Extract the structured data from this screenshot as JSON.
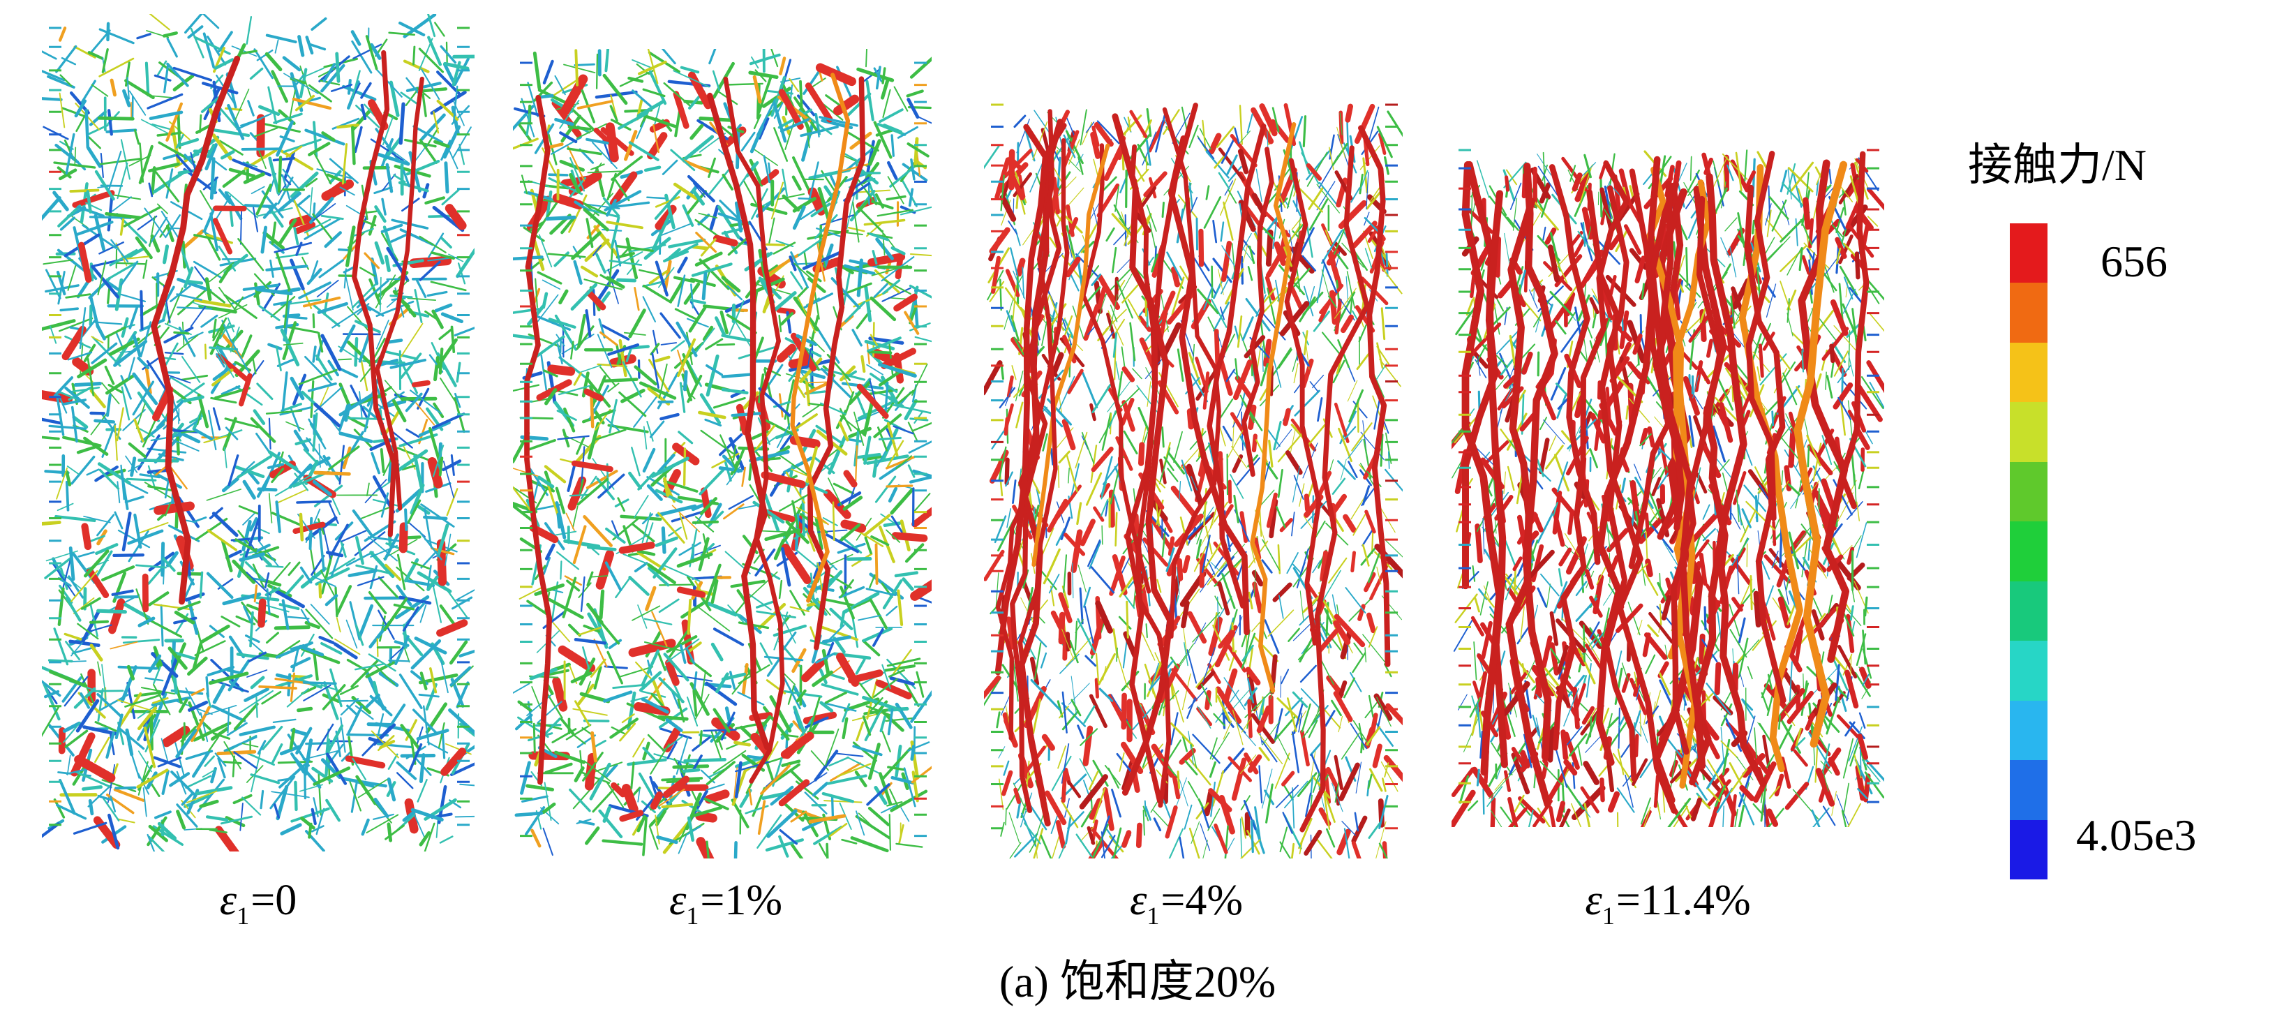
{
  "panels": [
    {
      "id": "p0",
      "label_sym": "ε",
      "label_sub": "1",
      "label_val": "=0",
      "style": "dense-green"
    },
    {
      "id": "p1",
      "label_sym": "ε",
      "label_sub": "1",
      "label_val": "=1%",
      "style": "green"
    },
    {
      "id": "p2",
      "label_sym": "ε",
      "label_sub": "1",
      "label_val": "=4%",
      "style": "sparse-red"
    },
    {
      "id": "p3",
      "label_sym": "ε",
      "label_sub": "1",
      "label_val": "=11.4%",
      "style": "red-chains"
    }
  ],
  "caption": "(a) 饱和度20%",
  "legend": {
    "title": "接触力/N",
    "max_label": "656",
    "min_label": "4.05e3",
    "colors": [
      "#e41a1c",
      "#f06a12",
      "#f5c218",
      "#c8e02a",
      "#5fc92c",
      "#1fcf3a",
      "#18c97c",
      "#27d6c6",
      "#29b6ef",
      "#1f6fe8",
      "#1a1ae6"
    ]
  }
}
